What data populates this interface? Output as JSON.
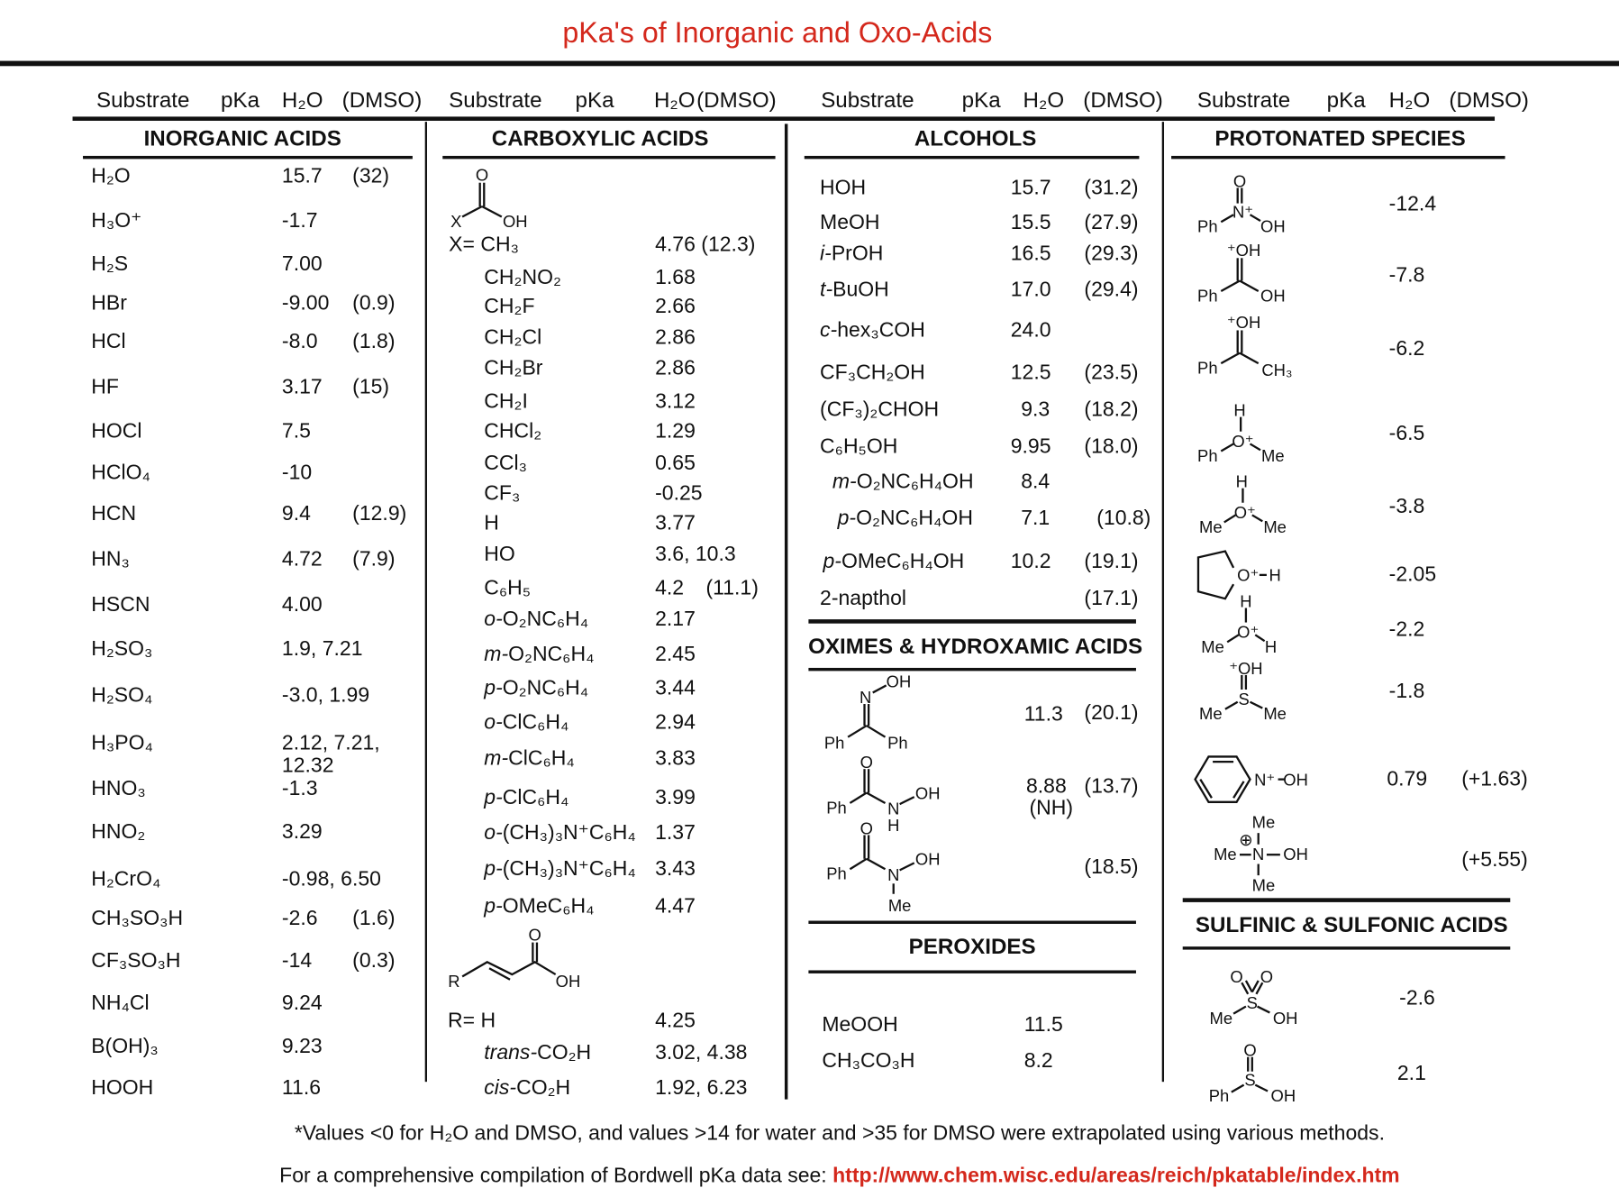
{
  "title": "pKa's of Inorganic and Oxo-Acids",
  "column_headers": [
    "Substrate",
    "pKa",
    "H₂O",
    "(DMSO)"
  ],
  "colors": {
    "title": "#d4281c",
    "link": "#d4281c",
    "text": "#111111"
  },
  "inorganic": {
    "title": "INORGANIC ACIDS",
    "items": [
      {
        "name": "H₂O",
        "pka": "15.7",
        "dmso": "(32)"
      },
      {
        "name": "H₃O⁺",
        "pka": "-1.7"
      },
      {
        "name": "H₂S",
        "pka": "7.00"
      },
      {
        "name": "HBr",
        "pka": "-9.00",
        "dmso": "(0.9)"
      },
      {
        "name": "HCl",
        "pka": "-8.0",
        "dmso": "(1.8)"
      },
      {
        "name": "HF",
        "pka": "3.17",
        "dmso": "(15)"
      },
      {
        "name": "HOCl",
        "pka": "7.5"
      },
      {
        "name": "HClO₄",
        "pka": "-10"
      },
      {
        "name": "HCN",
        "pka": "9.4",
        "dmso": "(12.9)"
      },
      {
        "name": "HN₃",
        "pka": "4.72",
        "dmso": "(7.9)"
      },
      {
        "name": "HSCN",
        "pka": "4.00"
      },
      {
        "name": "H₂SO₃",
        "pka": "1.9,  7.21"
      },
      {
        "name": "H₂SO₄",
        "pka": "-3.0, 1.99"
      },
      {
        "name": "H₃PO₄",
        "pka": "2.12, 7.21,",
        "pka2": "12.32"
      },
      {
        "name": "HNO₃",
        "pka": "-1.3"
      },
      {
        "name": "HNO₂",
        "pka": "3.29"
      },
      {
        "name": "H₂CrO₄",
        "pka": "-0.98, 6.50"
      },
      {
        "name": "CH₃SO₃H",
        "pka": "-2.6",
        "dmso": "(1.6)"
      },
      {
        "name": "CF₃SO₃H",
        "pka": "-14",
        "dmso": "(0.3)"
      },
      {
        "name": "NH₄Cl",
        "pka": "9.24"
      },
      {
        "name": "B(OH)₃",
        "pka": "9.23"
      },
      {
        "name": "HOOH",
        "pka": "11.6"
      }
    ]
  },
  "carboxylic": {
    "title": "CARBOXYLIC ACIDS",
    "structure_acid": [
      "O",
      "X",
      "OH"
    ],
    "x_label": "X= CH₃",
    "x_pka": "4.76 (12.3)",
    "items": [
      {
        "name": "CH₂NO₂",
        "pka": "1.68"
      },
      {
        "name": "CH₂F",
        "pka": "2.66"
      },
      {
        "name": "CH₂Cl",
        "pka": "2.86"
      },
      {
        "name": "CH₂Br",
        "pka": "2.86"
      },
      {
        "name": "CH₂I",
        "pka": "3.12"
      },
      {
        "name": "CHCl₂",
        "pka": "1.29"
      },
      {
        "name": "CCl₃",
        "pka": "0.65"
      },
      {
        "name": "CF₃",
        "pka": "-0.25"
      },
      {
        "name": "H",
        "pka": "3.77"
      },
      {
        "name": "HO",
        "pka": "3.6, 10.3"
      },
      {
        "name": "C₆H₅",
        "pka": "4.2",
        "dmso": "(11.1)"
      },
      {
        "prefix": "o-",
        "name": "O₂NC₆H₄",
        "pka": "2.17"
      },
      {
        "prefix": "m-",
        "name": "O₂NC₆H₄",
        "pka": "2.45"
      },
      {
        "prefix": "p-",
        "name": "O₂NC₆H₄",
        "pka": "3.44"
      },
      {
        "prefix": "o-",
        "name": "ClC₆H₄",
        "pka": "2.94"
      },
      {
        "prefix": "m-",
        "name": "ClC₆H₄",
        "pka": "3.83"
      },
      {
        "prefix": "p-",
        "name": "ClC₆H₄",
        "pka": "3.99"
      },
      {
        "prefix": "o-",
        "name": "(CH₃)₃N⁺C₆H₄",
        "pka": "1.37"
      },
      {
        "prefix": "p-",
        "name": "(CH₃)₃N⁺C₆H₄",
        "pka": "3.43"
      },
      {
        "prefix": "p-",
        "name": "OMeC₆H₄",
        "pka": "4.47"
      }
    ],
    "structure_acrylic": [
      "R",
      "O",
      "OH"
    ],
    "r_label": "R= H",
    "r_pka": "4.25",
    "r_items": [
      {
        "prefix": "trans-",
        "name": "CO₂H",
        "pka": "3.02, 4.38"
      },
      {
        "prefix": "cis-",
        "name": "CO₂H",
        "pka": "1.92, 6.23"
      }
    ]
  },
  "alcohols": {
    "title": "ALCOHOLS",
    "items": [
      {
        "name": "HOH",
        "pka": "15.7",
        "dmso": "(31.2)"
      },
      {
        "name": "MeOH",
        "pka": "15.5",
        "dmso": "(27.9)"
      },
      {
        "prefix": "i-",
        "name": "PrOH",
        "pka": "16.5",
        "dmso": "(29.3)"
      },
      {
        "prefix": "t-",
        "name": "BuOH",
        "pka": "17.0",
        "dmso": "(29.4)"
      },
      {
        "prefix": "c-",
        "name": "hex₃COH",
        "pka": "24.0"
      },
      {
        "name": "CF₃CH₂OH",
        "pka": "12.5",
        "dmso": "(23.5)"
      },
      {
        "name": "(CF₃)₂CHOH",
        "pka": "9.3",
        "dmso": "(18.2)"
      },
      {
        "name": "C₆H₅OH",
        "pka": "9.95",
        "dmso": "(18.0)"
      },
      {
        "prefix": "m-",
        "name": "O₂NC₆H₄OH",
        "pka": "8.4"
      },
      {
        "prefix": "p-",
        "name": "O₂NC₆H₄OH",
        "pka": "7.1",
        "dmso": "(10.8)"
      },
      {
        "prefix": "p-",
        "name": "OMeC₆H₄OH",
        "pka": "10.2",
        "dmso": "(19.1)"
      },
      {
        "name": "2-napthol",
        "dmso": "(17.1)"
      }
    ]
  },
  "oximes": {
    "title": "OXIMES & HYDROXAMIC ACIDS",
    "items": [
      {
        "structure": [
          "OH",
          "N",
          "Ph",
          "Ph"
        ],
        "pka": "11.3",
        "dmso": "(20.1)"
      },
      {
        "structure": [
          "O",
          "Ph",
          "N",
          "OH",
          "H"
        ],
        "pka": "8.88",
        "pka_note": "(NH)",
        "dmso": "(13.7)"
      },
      {
        "structure": [
          "O",
          "Ph",
          "N",
          "OH",
          "Me"
        ],
        "dmso": "(18.5)"
      }
    ]
  },
  "peroxides": {
    "title": "PEROXIDES",
    "items": [
      {
        "name": "MeOOH",
        "pka": "11.5"
      },
      {
        "name": "CH₃CO₃H",
        "pka": "8.2"
      }
    ]
  },
  "protonated": {
    "title": "PROTONATED SPECIES",
    "items": [
      {
        "structure": [
          "O",
          "N⁺",
          "Ph",
          "OH"
        ],
        "pka": "-12.4"
      },
      {
        "structure": [
          "⁺OH",
          "Ph",
          "OH"
        ],
        "pka": "-7.8"
      },
      {
        "structure": [
          "⁺OH",
          "Ph",
          "CH₃"
        ],
        "pka": "-6.2"
      },
      {
        "structure": [
          "H",
          "O⁺",
          "Ph",
          "Me"
        ],
        "pka": "-6.5"
      },
      {
        "structure": [
          "H",
          "O⁺",
          "Me",
          "Me"
        ],
        "pka": "-3.8"
      },
      {
        "structure": [
          "O⁺",
          "H"
        ],
        "pka": "-2.05"
      },
      {
        "structure": [
          "H",
          "O⁺",
          "Me",
          "H"
        ],
        "pka": "-2.2"
      },
      {
        "structure": [
          "⁺OH",
          "S",
          "Me",
          "Me"
        ],
        "pka": "-1.8"
      },
      {
        "structure": [
          "N⁺",
          "OH"
        ],
        "pka": "0.79",
        "dmso": "(+1.63)"
      },
      {
        "structure": [
          "Me",
          "⊕",
          "Me",
          "N",
          "OH",
          "Me"
        ],
        "dmso": "(+5.55)"
      }
    ]
  },
  "sulfinic": {
    "title": "SULFINIC & SULFONIC ACIDS",
    "items": [
      {
        "structure": [
          "O",
          "O",
          "S",
          "Me",
          "OH"
        ],
        "pka": "-2.6"
      },
      {
        "structure": [
          "O",
          "S",
          "Ph",
          "OH"
        ],
        "pka": "2.1"
      }
    ]
  },
  "footer": {
    "note": "*Values <0 for H₂O and DMSO, and values >14 for water and >35 for DMSO were extrapolated using various methods.",
    "compilation_text": "For a comprehensive compilation of Bordwell pKa data see: ",
    "link": "http://www.chem.wisc.edu/areas/reich/pkatable/index.htm"
  }
}
